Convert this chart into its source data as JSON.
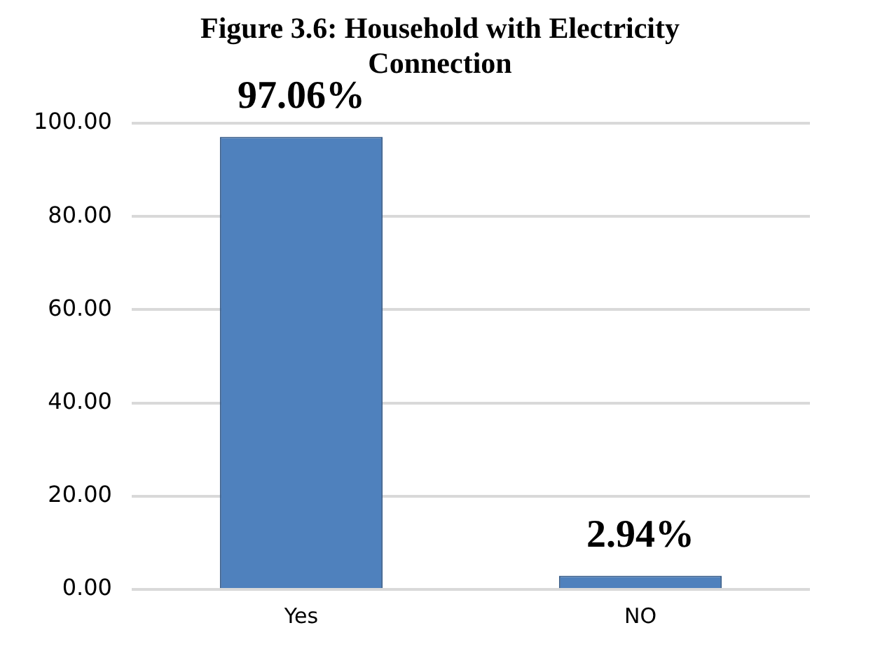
{
  "chart_data": {
    "type": "bar",
    "title": "Figure 3.6: Household with Electricity Connection",
    "categories": [
      "Yes",
      "NO"
    ],
    "values": [
      97.06,
      2.94
    ],
    "value_labels": [
      "97.06%",
      "2.94%"
    ],
    "color": "#4f81bd",
    "ylim": [
      0,
      100
    ],
    "yticks": [
      {
        "value": 0,
        "label": "0.00"
      },
      {
        "value": 20,
        "label": "20.00"
      },
      {
        "value": 40,
        "label": "40.00"
      },
      {
        "value": 60,
        "label": "60.00"
      },
      {
        "value": 80,
        "label": "80.00"
      },
      {
        "value": 100,
        "label": "100.00"
      }
    ],
    "grid": "y",
    "legend": false
  }
}
